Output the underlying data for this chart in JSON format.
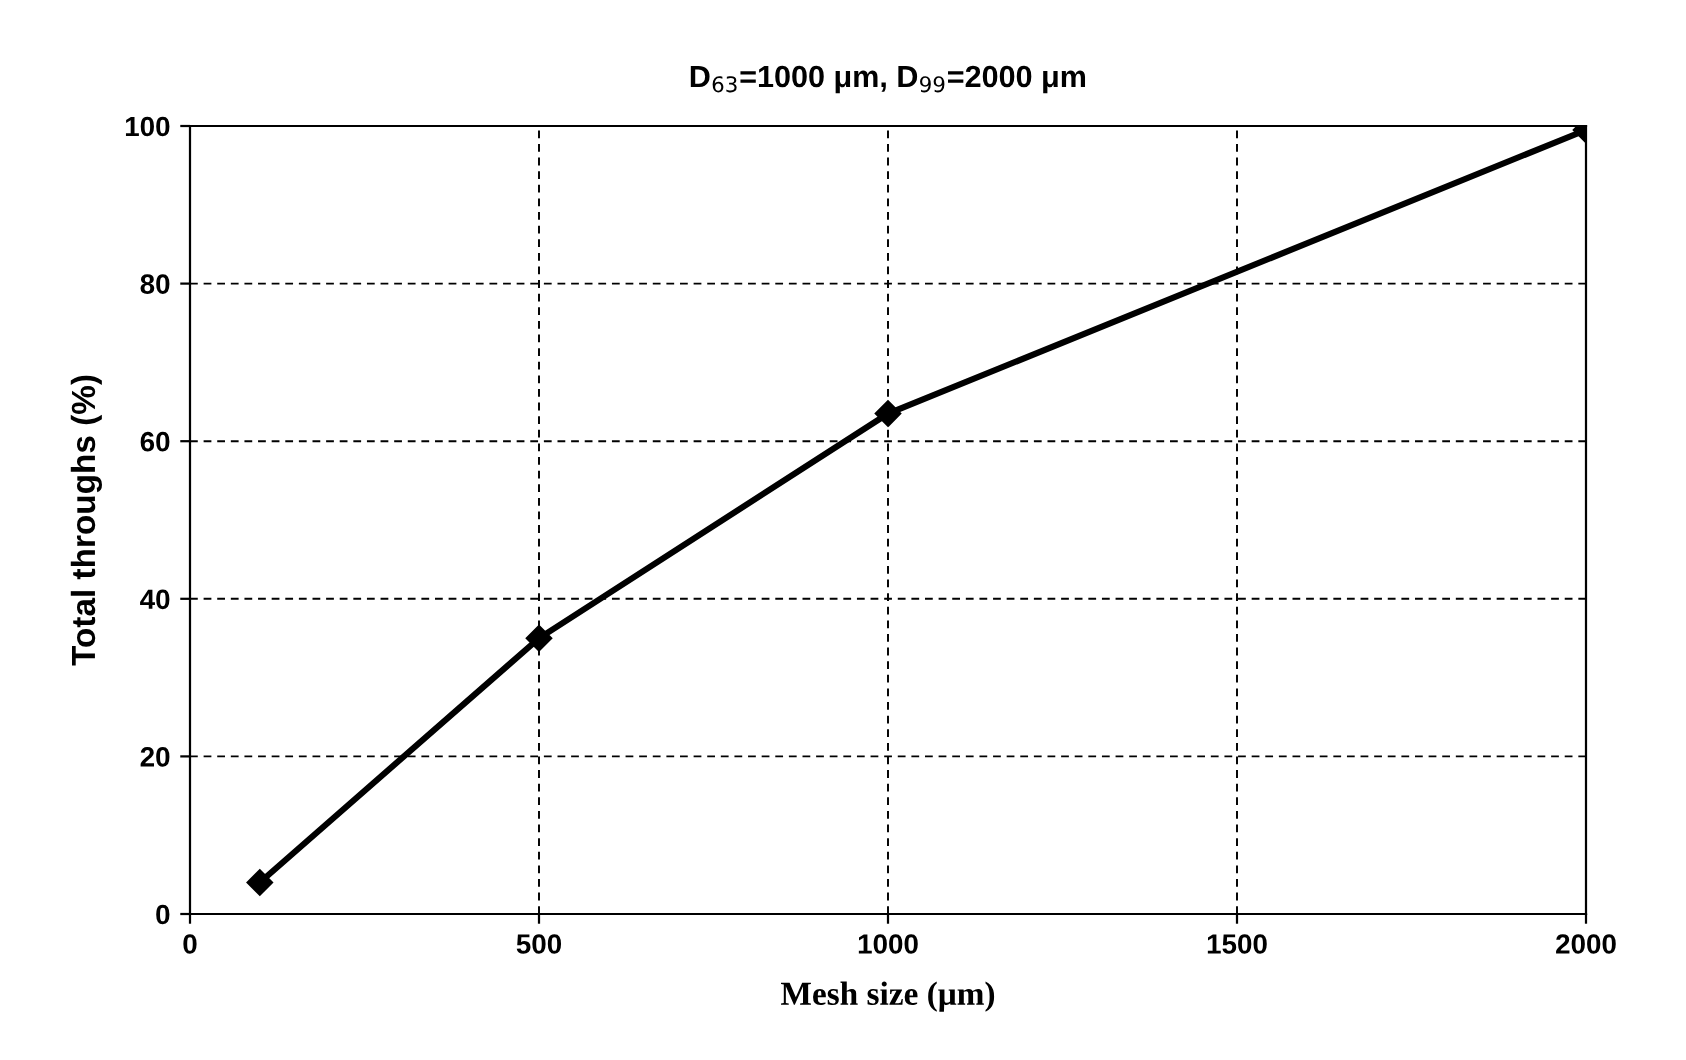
{
  "chart_data": {
    "type": "line",
    "title": "D$_{63}$=1000 μm, D$_{99}$=2000 μm",
    "xlabel": "Mesh size (μm)",
    "ylabel": "Total throughs (%)",
    "x": [
      100,
      500,
      1000,
      2000
    ],
    "series": [
      {
        "color": "#000000",
        "values": [
          4,
          35,
          63.5,
          99.5
        ]
      }
    ],
    "xlim": [
      0,
      2000
    ],
    "xticks": [
      0,
      500,
      1000,
      1500,
      2000
    ],
    "ylim": [
      0,
      100
    ],
    "yticks": [
      0,
      20,
      40,
      60,
      80,
      100
    ],
    "grid": true,
    "marker": "diamond",
    "line_style": "solid",
    "legend": false
  }
}
